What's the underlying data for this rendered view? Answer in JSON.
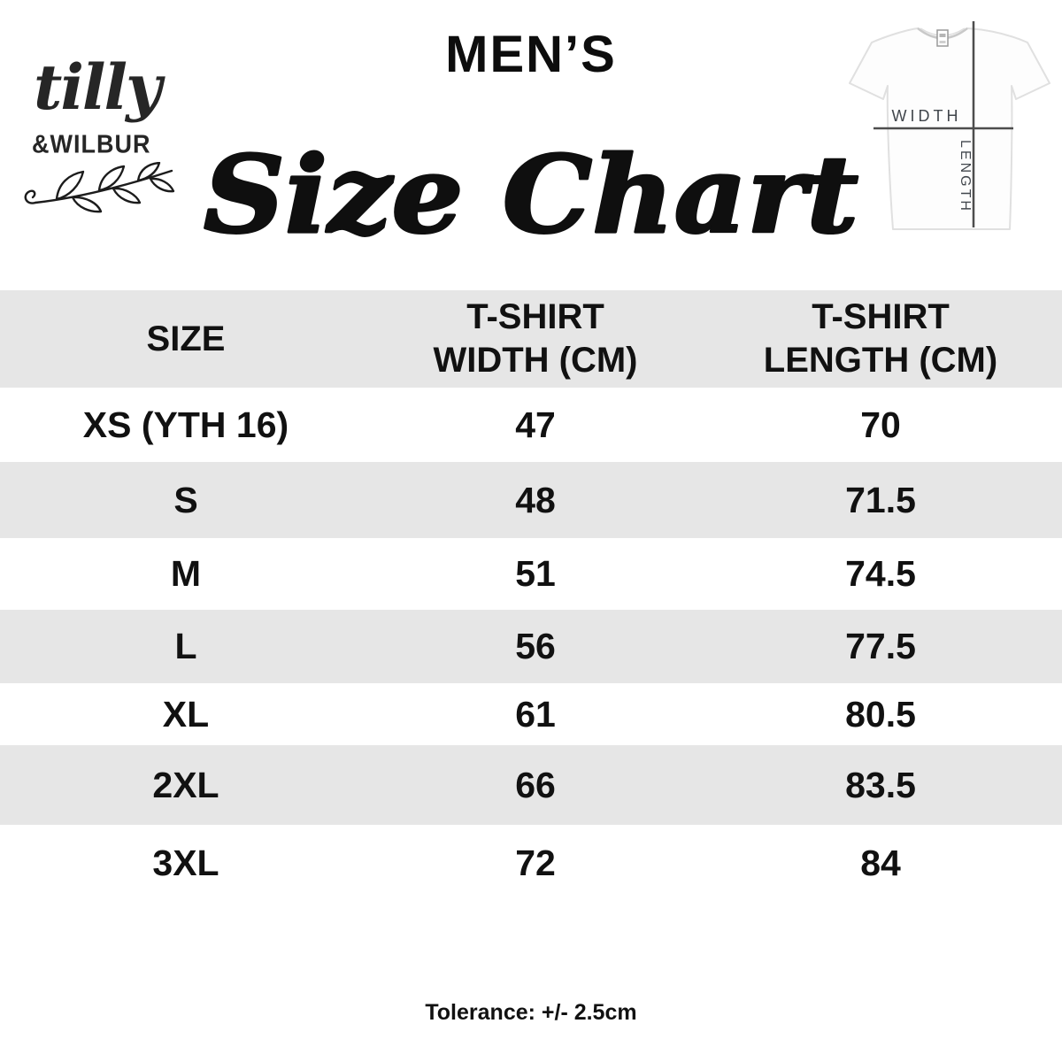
{
  "brand": {
    "script_name": "tilly",
    "caps_name": "&WILBUR"
  },
  "header": {
    "category": "MEN’S",
    "title": "Size Chart"
  },
  "diagram": {
    "width_label": "WIDTH",
    "length_label": "LENGTH"
  },
  "table": {
    "columns": [
      "SIZE",
      "T-SHIRT\nWIDTH (CM)",
      "T-SHIRT\nLENGTH (CM)"
    ],
    "rows": [
      [
        "XS (YTH 16)",
        "47",
        "70"
      ],
      [
        "S",
        "48",
        "71.5"
      ],
      [
        "M",
        "51",
        "74.5"
      ],
      [
        "L",
        "56",
        "77.5"
      ],
      [
        "XL",
        "61",
        "80.5"
      ],
      [
        "2XL",
        "66",
        "83.5"
      ],
      [
        "3XL",
        "72",
        "84"
      ]
    ]
  },
  "footer": {
    "tolerance": "Tolerance: +/- 2.5cm"
  },
  "colors": {
    "row_alt": "#e6e6e6",
    "header_bg": "#e6e6e6",
    "text": "#111111",
    "diagram_line": "#4d4d4d",
    "logo_ink": "#262626"
  },
  "chart_data": {
    "type": "table",
    "title": "MEN’S Size Chart",
    "columns": [
      "SIZE",
      "T-SHIRT WIDTH (CM)",
      "T-SHIRT LENGTH (CM)"
    ],
    "rows": [
      [
        "XS (YTH 16)",
        47,
        70
      ],
      [
        "S",
        48,
        71.5
      ],
      [
        "M",
        51,
        74.5
      ],
      [
        "L",
        56,
        77.5
      ],
      [
        "XL",
        61,
        80.5
      ],
      [
        "2XL",
        66,
        83.5
      ],
      [
        "3XL",
        72,
        84
      ]
    ],
    "note": "Tolerance: +/- 2.5cm"
  }
}
